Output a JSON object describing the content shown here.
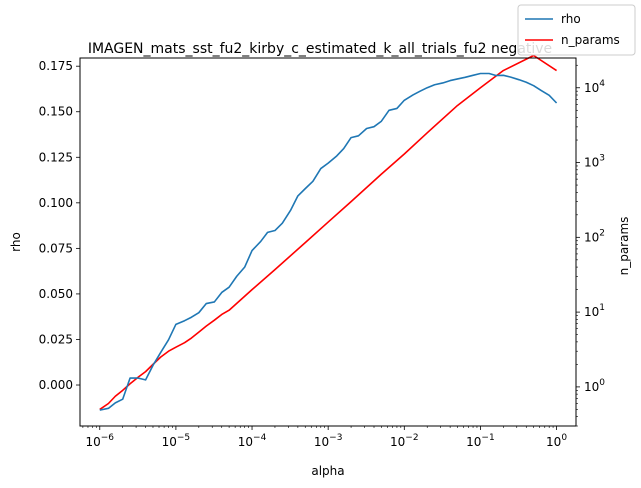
{
  "chart_data": {
    "type": "line",
    "title": "IMAGEN_mats_sst_fu2_kirby_c_estimated_k_all_trials_fu2 negative",
    "xlabel": "alpha",
    "ylabel": "rho",
    "y2label": "n_params",
    "x_scale": "log",
    "y2_scale": "log",
    "xlim": [
      5.5e-07,
      1.8
    ],
    "ylim": [
      -0.0225,
      0.1795
    ],
    "y2lim": [
      0.3,
      25000
    ],
    "x_tick_labels": [
      "10^-6",
      "10^-5",
      "10^-4",
      "10^-3",
      "10^-2",
      "10^-1",
      "10^0"
    ],
    "y_tick_labels": [
      "0.000",
      "0.025",
      "0.050",
      "0.075",
      "0.100",
      "0.125",
      "0.150",
      "0.175"
    ],
    "y2_tick_labels": [
      "10^0",
      "10^1",
      "10^2",
      "10^3",
      "10^4"
    ],
    "legend_position": "top-right (outside axes)",
    "grid": false,
    "colors": {
      "rho": "#1f77b4",
      "n_params": "#ff0000"
    },
    "series": [
      {
        "name": "rho",
        "axis": "left",
        "x": [
          1e-06,
          1.3e-06,
          1.6e-06,
          2e-06,
          2.5e-06,
          3.2e-06,
          4e-06,
          5e-06,
          6.3e-06,
          8e-06,
          1e-05,
          1.3e-05,
          1.6e-05,
          2e-05,
          2.5e-05,
          3.2e-05,
          4e-05,
          5e-05,
          6.3e-05,
          8e-05,
          0.0001,
          0.00013,
          0.00016,
          0.0002,
          0.00025,
          0.00032,
          0.0004,
          0.0005,
          0.00063,
          0.0008,
          0.001,
          0.0013,
          0.0016,
          0.002,
          0.0025,
          0.0032,
          0.004,
          0.005,
          0.0063,
          0.008,
          0.01,
          0.013,
          0.016,
          0.02,
          0.025,
          0.032,
          0.04,
          0.05,
          0.063,
          0.08,
          0.1,
          0.13,
          0.16,
          0.2,
          0.25,
          0.32,
          0.4,
          0.5,
          0.63,
          0.8,
          1.0
        ],
        "values": [
          -0.0138,
          -0.0128,
          -0.0098,
          -0.0078,
          0.0038,
          0.0038,
          0.0028,
          0.0108,
          0.0178,
          0.0248,
          0.0333,
          0.0353,
          0.0372,
          0.0397,
          0.0447,
          0.0456,
          0.0508,
          0.0537,
          0.0597,
          0.0647,
          0.0738,
          0.0788,
          0.0838,
          0.0848,
          0.0888,
          0.0958,
          0.1038,
          0.1078,
          0.1118,
          0.1188,
          0.1218,
          0.1258,
          0.1298,
          0.1358,
          0.1368,
          0.1408,
          0.1418,
          0.1448,
          0.1508,
          0.1518,
          0.1563,
          0.1592,
          0.1612,
          0.1632,
          0.1648,
          0.1658,
          0.1671,
          0.168,
          0.1689,
          0.17,
          0.171,
          0.171,
          0.1699,
          0.17,
          0.169,
          0.1676,
          0.1662,
          0.1643,
          0.1616,
          0.159,
          0.1548
        ]
      },
      {
        "name": "n_params",
        "axis": "right",
        "x": [
          1e-06,
          1.3e-06,
          1.6e-06,
          2e-06,
          2.5e-06,
          3.2e-06,
          4e-06,
          5e-06,
          6.3e-06,
          8e-06,
          1e-05,
          1.3e-05,
          1.6e-05,
          2e-05,
          2.5e-05,
          3.2e-05,
          4e-05,
          5e-05,
          0.0001,
          0.0002,
          0.0005,
          0.001,
          0.002,
          0.005,
          0.01,
          0.02,
          0.05,
          0.1,
          0.2,
          0.5,
          1.0
        ],
        "values": [
          0.5,
          0.6,
          0.75,
          0.9,
          1.1,
          1.35,
          1.6,
          2.0,
          2.5,
          3.0,
          3.4,
          3.9,
          4.5,
          5.4,
          6.5,
          7.8,
          9.3,
          10.6,
          20,
          37,
          85,
          160,
          300,
          700,
          1300,
          2500,
          5800,
          10000,
          17000,
          27000,
          17000
        ]
      }
    ]
  }
}
